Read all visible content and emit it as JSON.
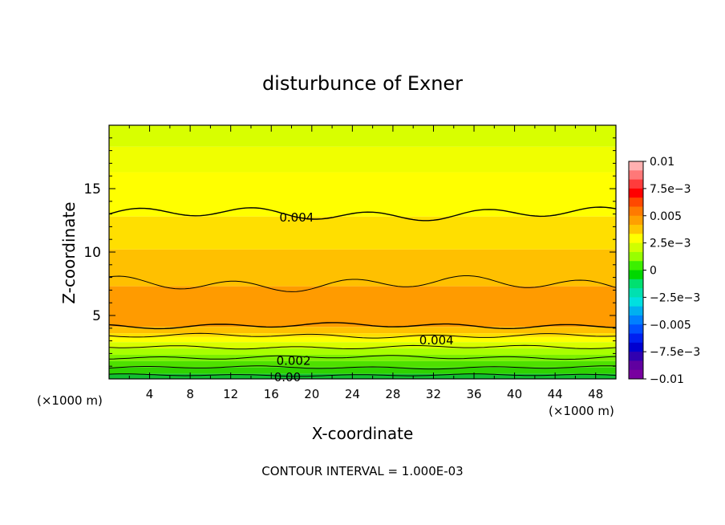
{
  "chart_data": {
    "type": "contour",
    "title": "disturbunce of Exner",
    "xlabel": "X-coordinate",
    "ylabel": "Z-coordinate",
    "x_unit_left": "(×1000 m)",
    "x_unit_right": "(×1000 m)",
    "footer": "CONTOUR INTERVAL = 1.000E-03",
    "xlim": [
      0,
      50
    ],
    "ylim": [
      0,
      20
    ],
    "x_ticks": [
      "4",
      "8",
      "12",
      "16",
      "20",
      "24",
      "28",
      "32",
      "36",
      "40",
      "44",
      "48"
    ],
    "y_ticks": [
      "5",
      "10",
      "15"
    ],
    "x_tick_values": [
      4,
      8,
      12,
      16,
      20,
      24,
      28,
      32,
      36,
      40,
      44,
      48
    ],
    "y_tick_values": [
      5,
      10,
      15
    ],
    "contour_labels": [
      {
        "text": "0.004",
        "x": 18.5,
        "z": 12.8
      },
      {
        "text": "0.004",
        "x": 32.3,
        "z": 3.1
      },
      {
        "text": "0.002",
        "x": 18.2,
        "z": 1.5
      },
      {
        "text": "0.00",
        "x": 17.6,
        "z": 0.2
      }
    ],
    "bands": [
      {
        "z_low": 18.3,
        "z_high": 20.0,
        "color": "#d8ff00"
      },
      {
        "z_low": 16.3,
        "z_high": 18.3,
        "color": "#f0ff00"
      },
      {
        "z_low": 12.8,
        "z_high": 16.3,
        "color": "#ffff00"
      },
      {
        "z_low": 10.2,
        "z_high": 12.8,
        "color": "#ffdf00"
      },
      {
        "z_low": 7.3,
        "z_high": 10.2,
        "color": "#ffc000"
      },
      {
        "z_low": 4.1,
        "z_high": 7.3,
        "color": "#ff9b00"
      },
      {
        "z_low": 3.6,
        "z_high": 4.1,
        "color": "#ffc000"
      },
      {
        "z_low": 3.3,
        "z_high": 3.6,
        "color": "#ffdf00"
      },
      {
        "z_low": 2.9,
        "z_high": 3.3,
        "color": "#ffff00"
      },
      {
        "z_low": 2.4,
        "z_high": 2.9,
        "color": "#d8ff00"
      },
      {
        "z_low": 1.9,
        "z_high": 2.4,
        "color": "#a8ff00"
      },
      {
        "z_low": 1.4,
        "z_high": 1.9,
        "color": "#7cf000"
      },
      {
        "z_low": 0.9,
        "z_high": 1.4,
        "color": "#4ee000"
      },
      {
        "z_low": 0.4,
        "z_high": 0.9,
        "color": "#2ed200"
      },
      {
        "z_low": 0.0,
        "z_high": 0.4,
        "color": "#12c030"
      }
    ],
    "contour_lines": [
      {
        "z": 13.0,
        "wave": 0.35
      },
      {
        "z": 7.5,
        "wave": 0.4
      },
      {
        "z": 4.2,
        "wave": 0.15
      },
      {
        "z": 3.4,
        "wave": 0.12
      },
      {
        "z": 2.5,
        "wave": 0.1
      },
      {
        "z": 1.7,
        "wave": 0.1
      },
      {
        "z": 0.9,
        "wave": 0.08
      },
      {
        "z": 0.3,
        "wave": 0.06
      }
    ],
    "colorbar": {
      "labels": [
        "0.01",
        "7.5e-3",
        "0.005",
        "2.5e-3",
        "0",
        "-2.5e-3",
        "-0.005",
        "-7.5e-3",
        "-0.01"
      ],
      "colors_top_to_bottom": [
        "#ffb0b0",
        "#ff7878",
        "#ff3c3c",
        "#ff0000",
        "#ff4800",
        "#ff7a00",
        "#ffa000",
        "#ffc800",
        "#ffff00",
        "#d0ff00",
        "#98ff00",
        "#3cf000",
        "#00d800",
        "#00e070",
        "#00e0b0",
        "#00e0e0",
        "#00b0f0",
        "#0080ff",
        "#0050ff",
        "#0020f0",
        "#0000d0",
        "#3000b0",
        "#6000a0",
        "#7800a0"
      ]
    }
  }
}
